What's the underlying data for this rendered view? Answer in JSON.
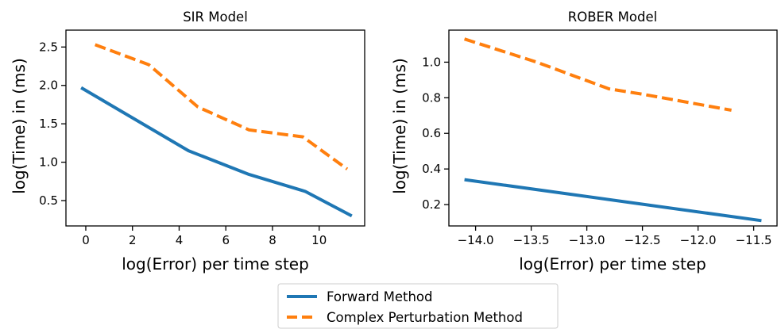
{
  "chart_data": [
    {
      "type": "line",
      "title": "SIR Model",
      "xlabel": "log(Error) per time step",
      "ylabel": "log(Time) in (ms)",
      "xlim": [
        -0.85,
        11.95
      ],
      "ylim": [
        0.17,
        2.72
      ],
      "xticks": [
        0,
        2,
        4,
        6,
        8,
        10
      ],
      "xtick_labels": [
        "0",
        "2",
        "4",
        "6",
        "8",
        "10"
      ],
      "yticks": [
        0.5,
        1.0,
        1.5,
        2.0,
        2.5
      ],
      "ytick_labels": [
        "0.5",
        "1.0",
        "1.5",
        "2.0",
        "2.5"
      ],
      "grid": false,
      "series": [
        {
          "name": "Forward Method",
          "color": "#1f77b4",
          "dash": "solid",
          "x": [
            -0.2,
            4.4,
            7.0,
            9.4,
            11.4
          ],
          "y": [
            1.97,
            1.15,
            0.84,
            0.62,
            0.3
          ]
        },
        {
          "name": "Complex Perturbation Method",
          "color": "#ff7f0e",
          "dash": "dashed",
          "x": [
            0.4,
            2.7,
            4.8,
            7.0,
            9.3,
            11.2
          ],
          "y": [
            2.53,
            2.27,
            1.72,
            1.42,
            1.33,
            0.91
          ]
        }
      ]
    },
    {
      "type": "line",
      "title": "ROBER Model",
      "xlabel": "log(Error) per time step",
      "ylabel": "log(Time) in (ms)",
      "xlim": [
        -14.24,
        -11.29
      ],
      "ylim": [
        0.08,
        1.18
      ],
      "xticks": [
        -14.0,
        -13.5,
        -13.0,
        -12.5,
        -12.0,
        -11.5
      ],
      "xtick_labels": [
        "−14.0",
        "−13.5",
        "−13.0",
        "−12.5",
        "−12.0",
        "−11.5"
      ],
      "yticks": [
        0.2,
        0.4,
        0.6,
        0.8,
        1.0
      ],
      "ytick_labels": [
        "0.2",
        "0.4",
        "0.6",
        "0.8",
        "1.0"
      ],
      "grid": false,
      "series": [
        {
          "name": "Forward Method",
          "color": "#1f77b4",
          "dash": "solid",
          "x": [
            -14.1,
            -11.43
          ],
          "y": [
            0.34,
            0.11
          ]
        },
        {
          "name": "Complex Perturbation Method",
          "color": "#ff7f0e",
          "dash": "dashed",
          "x": [
            -14.1,
            -13.45,
            -12.8,
            -12.5,
            -11.7
          ],
          "y": [
            1.13,
            1.0,
            0.85,
            0.82,
            0.73
          ]
        }
      ]
    }
  ],
  "legend": {
    "placement": "bottom-center",
    "entries": [
      {
        "label": "Forward Method",
        "color": "#1f77b4",
        "dash": "solid"
      },
      {
        "label": "Complex Perturbation Method",
        "color": "#ff7f0e",
        "dash": "dashed"
      }
    ]
  }
}
